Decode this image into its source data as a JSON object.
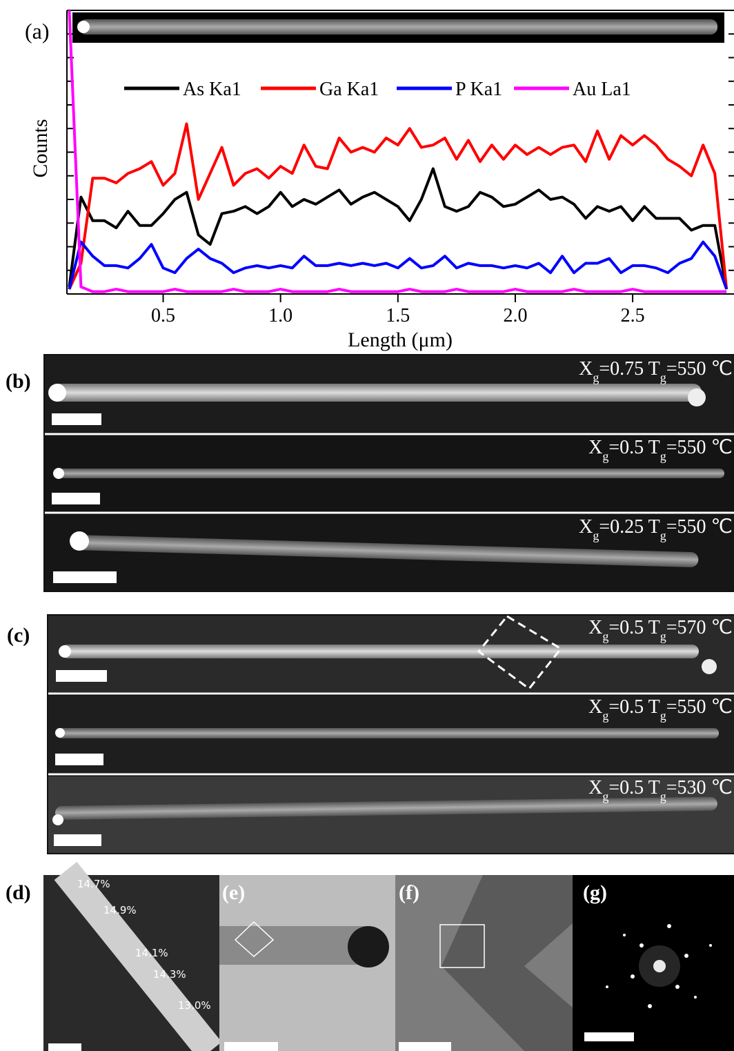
{
  "chart_data": {
    "type": "line",
    "panel_label": "(a)",
    "xlabel": "Length (μm)",
    "ylabel": "Counts",
    "legend": "top",
    "xlim": [
      0.09,
      2.92
    ],
    "ylim": [
      0,
      12
    ],
    "xticks": [
      0.5,
      {
        "value": 1,
        "label": "1.0"
      },
      1.5,
      {
        "value": 2,
        "label": "2.0"
      },
      2.5
    ],
    "yticks": [
      0,
      1,
      2,
      3,
      4,
      5,
      6,
      7,
      8,
      9,
      10,
      11,
      12
    ],
    "x": [
      0.1,
      0.15,
      0.2,
      0.25,
      0.3,
      0.35,
      0.4,
      0.45,
      0.5,
      0.55,
      0.6,
      0.65,
      0.7,
      0.75,
      0.8,
      0.85,
      0.9,
      0.95,
      1.0,
      1.05,
      1.1,
      1.15,
      1.2,
      1.25,
      1.3,
      1.35,
      1.4,
      1.45,
      1.5,
      1.55,
      1.6,
      1.65,
      1.7,
      1.75,
      1.8,
      1.85,
      1.9,
      1.95,
      2.0,
      2.05,
      2.1,
      2.15,
      2.2,
      2.25,
      2.3,
      2.35,
      2.4,
      2.45,
      2.5,
      2.55,
      2.6,
      2.65,
      2.7,
      2.75,
      2.8,
      2.85,
      2.9
    ],
    "series": [
      {
        "name": "As Ka1",
        "color": "#000000",
        "values": [
          0.3,
          4.1,
          3.1,
          3.1,
          2.8,
          3.5,
          2.9,
          2.9,
          3.4,
          4.0,
          4.3,
          2.5,
          2.1,
          3.4,
          3.5,
          3.7,
          3.4,
          3.7,
          4.3,
          3.7,
          4.0,
          3.8,
          4.1,
          4.4,
          3.8,
          4.1,
          4.3,
          4.0,
          3.7,
          3.1,
          4.0,
          5.3,
          3.7,
          3.5,
          3.7,
          4.3,
          4.1,
          3.7,
          3.8,
          4.1,
          4.4,
          4.0,
          4.1,
          3.8,
          3.2,
          3.7,
          3.5,
          3.7,
          3.1,
          3.7,
          3.2,
          3.2,
          3.2,
          2.7,
          2.9,
          2.9,
          0.2
        ]
      },
      {
        "name": "Ga Ka1",
        "color": "#ff0000",
        "values": [
          0.2,
          1.3,
          4.9,
          4.9,
          4.7,
          5.1,
          5.3,
          5.6,
          4.6,
          5.1,
          7.2,
          4.0,
          5.1,
          6.2,
          4.6,
          5.1,
          5.3,
          4.9,
          5.4,
          5.1,
          6.3,
          5.4,
          5.3,
          6.6,
          6.0,
          6.2,
          6.0,
          6.6,
          6.3,
          7.0,
          6.2,
          6.3,
          6.6,
          5.7,
          6.5,
          5.6,
          6.3,
          5.7,
          6.3,
          5.9,
          6.2,
          5.9,
          6.2,
          6.3,
          5.6,
          6.9,
          5.7,
          6.7,
          6.3,
          6.7,
          6.3,
          5.7,
          5.4,
          5.0,
          6.3,
          5.1,
          0.2
        ]
      },
      {
        "name": "P Ka1",
        "color": "#0000ff",
        "values": [
          0.2,
          2.2,
          1.6,
          1.2,
          1.2,
          1.1,
          1.5,
          2.1,
          1.1,
          0.9,
          1.5,
          1.9,
          1.5,
          1.3,
          0.9,
          1.1,
          1.2,
          1.1,
          1.2,
          1.1,
          1.6,
          1.2,
          1.2,
          1.3,
          1.2,
          1.3,
          1.2,
          1.3,
          1.1,
          1.5,
          1.1,
          1.2,
          1.6,
          1.1,
          1.3,
          1.2,
          1.2,
          1.1,
          1.2,
          1.1,
          1.3,
          0.9,
          1.6,
          0.9,
          1.3,
          1.3,
          1.5,
          0.9,
          1.2,
          1.2,
          1.1,
          0.9,
          1.3,
          1.5,
          2.2,
          1.6,
          0.2
        ]
      },
      {
        "name": "Au La1",
        "color": "#ff00ff",
        "values": [
          12,
          0.3,
          0.1,
          0.1,
          0.2,
          0.1,
          0.1,
          0.1,
          0.1,
          0.2,
          0.1,
          0.1,
          0.1,
          0.1,
          0.2,
          0.1,
          0.1,
          0.1,
          0.2,
          0.1,
          0.1,
          0.1,
          0.1,
          0.2,
          0.1,
          0.1,
          0.1,
          0.1,
          0.1,
          0.2,
          0.1,
          0.1,
          0.1,
          0.2,
          0.1,
          0.1,
          0.1,
          0.1,
          0.2,
          0.1,
          0.1,
          0.1,
          0.1,
          0.2,
          0.1,
          0.1,
          0.1,
          0.1,
          0.2,
          0.1,
          0.1,
          0.1,
          0.1,
          0.1,
          0.1,
          0.1,
          0.1
        ]
      }
    ]
  },
  "panels": {
    "b": {
      "label": "(b)",
      "images": [
        {
          "parts": [
            "X",
            "g",
            "=0.75  T",
            "g",
            "=550 ℃"
          ]
        },
        {
          "parts": [
            "X",
            "g",
            "=0.5  T",
            "g",
            "=550 ℃"
          ]
        },
        {
          "parts": [
            "X",
            "g",
            "=0.25  T",
            "g",
            "=550 ℃"
          ]
        }
      ]
    },
    "c": {
      "label": "(c)",
      "images": [
        {
          "parts": [
            "X",
            "g",
            "=0.5  T",
            "g",
            "=570 ℃"
          ]
        },
        {
          "parts": [
            "X",
            "g",
            "=0.5  T",
            "g",
            "=550 ℃"
          ]
        },
        {
          "parts": [
            "X",
            "g",
            "=0.5  T",
            "g",
            "=530 ℃"
          ]
        }
      ]
    },
    "d": {
      "label": "(d)",
      "annotations": [
        "14.7%",
        "14.9%",
        "14.1%",
        "14.3%",
        "13.0%"
      ]
    },
    "e": {
      "label": "(e)"
    },
    "f": {
      "label": "(f)"
    },
    "g": {
      "label": "(g)"
    }
  }
}
